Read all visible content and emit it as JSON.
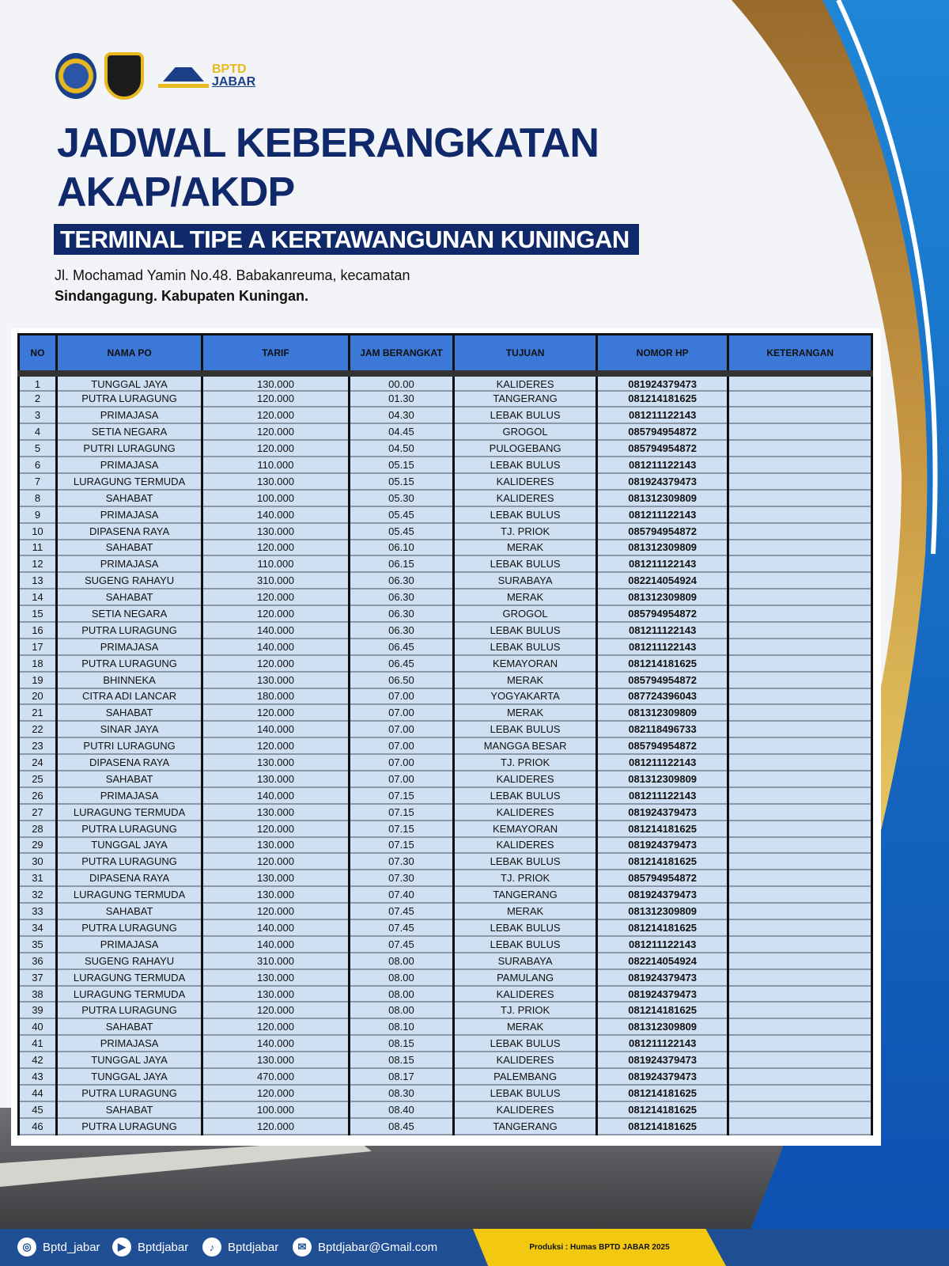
{
  "brand": {
    "logo_text_top": "BPTD",
    "logo_text_bottom": "JABAR"
  },
  "title": {
    "line1": "JADWAL KEBERANGKATAN",
    "line2": "AKAP/AKDP",
    "subtitle": "TERMINAL TIPE A KERTAWANGUNAN KUNINGAN"
  },
  "address": {
    "line1": "Jl. Mochamad Yamin No.48. Babakanreuma, kecamatan",
    "line2": "Sindangagung. Kabupaten Kuningan."
  },
  "table": {
    "headers": [
      "NO",
      "NAMA PO",
      "TARIF",
      "JAM BERANGKAT",
      "TUJUAN",
      "NOMOR HP",
      "KETERANGAN"
    ],
    "rows": [
      [
        "1",
        "TUNGGAL JAYA",
        "130.000",
        "00.00",
        "KALIDERES",
        "081924379473",
        ""
      ],
      [
        "2",
        "PUTRA LURAGUNG",
        "120.000",
        "01.30",
        "TANGERANG",
        "081214181625",
        ""
      ],
      [
        "3",
        "PRIMAJASA",
        "120.000",
        "04.30",
        "LEBAK BULUS",
        "081211122143",
        ""
      ],
      [
        "4",
        "SETIA NEGARA",
        "120.000",
        "04.45",
        "GROGOL",
        "085794954872",
        ""
      ],
      [
        "5",
        "PUTRI LURAGUNG",
        "120.000",
        "04.50",
        "PULOGEBANG",
        "085794954872",
        ""
      ],
      [
        "6",
        "PRIMAJASA",
        "110.000",
        "05.15",
        "LEBAK BULUS",
        "081211122143",
        ""
      ],
      [
        "7",
        "LURAGUNG TERMUDA",
        "130.000",
        "05.15",
        "KALIDERES",
        "081924379473",
        ""
      ],
      [
        "8",
        "SAHABAT",
        "100.000",
        "05.30",
        "KALIDERES",
        "081312309809",
        ""
      ],
      [
        "9",
        "PRIMAJASA",
        "140.000",
        "05.45",
        "LEBAK BULUS",
        "081211122143",
        ""
      ],
      [
        "10",
        "DIPASENA RAYA",
        "130.000",
        "05.45",
        "TJ. PRIOK",
        "085794954872",
        ""
      ],
      [
        "11",
        "SAHABAT",
        "120.000",
        "06.10",
        "MERAK",
        "081312309809",
        ""
      ],
      [
        "12",
        "PRIMAJASA",
        "110.000",
        "06.15",
        "LEBAK BULUS",
        "081211122143",
        ""
      ],
      [
        "13",
        "SUGENG RAHAYU",
        "310.000",
        "06.30",
        "SURABAYA",
        "082214054924",
        ""
      ],
      [
        "14",
        "SAHABAT",
        "120.000",
        "06.30",
        "MERAK",
        "081312309809",
        ""
      ],
      [
        "15",
        "SETIA NEGARA",
        "120.000",
        "06.30",
        "GROGOL",
        "085794954872",
        ""
      ],
      [
        "16",
        "PUTRA LURAGUNG",
        "140.000",
        "06.30",
        "LEBAK BULUS",
        "081211122143",
        ""
      ],
      [
        "17",
        "PRIMAJASA",
        "140.000",
        "06.45",
        "LEBAK BULUS",
        "081211122143",
        ""
      ],
      [
        "18",
        "PUTRA LURAGUNG",
        "120.000",
        "06.45",
        "KEMAYORAN",
        "081214181625",
        ""
      ],
      [
        "19",
        "BHINNEKA",
        "130.000",
        "06.50",
        "MERAK",
        "085794954872",
        ""
      ],
      [
        "20",
        "CITRA ADI LANCAR",
        "180.000",
        "07.00",
        "YOGYAKARTA",
        "087724396043",
        ""
      ],
      [
        "21",
        "SAHABAT",
        "120.000",
        "07.00",
        "MERAK",
        "081312309809",
        ""
      ],
      [
        "22",
        "SINAR JAYA",
        "140.000",
        "07.00",
        "LEBAK BULUS",
        "082118496733",
        ""
      ],
      [
        "23",
        "PUTRI LURAGUNG",
        "120.000",
        "07.00",
        "MANGGA BESAR",
        "085794954872",
        ""
      ],
      [
        "24",
        "DIPASENA RAYA",
        "130.000",
        "07.00",
        "TJ. PRIOK",
        "081211122143",
        ""
      ],
      [
        "25",
        "SAHABAT",
        "130.000",
        "07.00",
        "KALIDERES",
        "081312309809",
        ""
      ],
      [
        "26",
        "PRIMAJASA",
        "140.000",
        "07.15",
        "LEBAK BULUS",
        "081211122143",
        ""
      ],
      [
        "27",
        "LURAGUNG TERMUDA",
        "130.000",
        "07.15",
        "KALIDERES",
        "081924379473",
        ""
      ],
      [
        "28",
        "PUTRA LURAGUNG",
        "120.000",
        "07.15",
        "KEMAYORAN",
        "081214181625",
        ""
      ],
      [
        "29",
        "TUNGGAL JAYA",
        "130.000",
        "07.15",
        "KALIDERES",
        "081924379473",
        ""
      ],
      [
        "30",
        "PUTRA LURAGUNG",
        "120.000",
        "07.30",
        "LEBAK BULUS",
        "081214181625",
        ""
      ],
      [
        "31",
        "DIPASENA RAYA",
        "130.000",
        "07.30",
        "TJ. PRIOK",
        "085794954872",
        ""
      ],
      [
        "32",
        "LURAGUNG TERMUDA",
        "130.000",
        "07.40",
        "TANGERANG",
        "081924379473",
        ""
      ],
      [
        "33",
        "SAHABAT",
        "120.000",
        "07.45",
        "MERAK",
        "081312309809",
        ""
      ],
      [
        "34",
        "PUTRA LURAGUNG",
        "140.000",
        "07.45",
        "LEBAK BULUS",
        "081214181625",
        ""
      ],
      [
        "35",
        "PRIMAJASA",
        "140.000",
        "07.45",
        "LEBAK BULUS",
        "081211122143",
        ""
      ],
      [
        "36",
        "SUGENG RAHAYU",
        "310.000",
        "08.00",
        "SURABAYA",
        "082214054924",
        ""
      ],
      [
        "37",
        "LURAGUNG TERMUDA",
        "130.000",
        "08.00",
        "PAMULANG",
        "081924379473",
        ""
      ],
      [
        "38",
        "LURAGUNG TERMUDA",
        "130.000",
        "08.00",
        "KALIDERES",
        "081924379473",
        ""
      ],
      [
        "39",
        "PUTRA LURAGUNG",
        "120.000",
        "08.00",
        "TJ. PRIOK",
        "081214181625",
        ""
      ],
      [
        "40",
        "SAHABAT",
        "120.000",
        "08.10",
        "MERAK",
        "081312309809",
        ""
      ],
      [
        "41",
        "PRIMAJASA",
        "140.000",
        "08.15",
        "LEBAK BULUS",
        "081211122143",
        ""
      ],
      [
        "42",
        "TUNGGAL JAYA",
        "130.000",
        "08.15",
        "KALIDERES",
        "081924379473",
        ""
      ],
      [
        "43",
        "TUNGGAL JAYA",
        "470.000",
        "08.17",
        "PALEMBANG",
        "081924379473",
        ""
      ],
      [
        "44",
        "PUTRA LURAGUNG",
        "120.000",
        "08.30",
        "LEBAK BULUS",
        "081214181625",
        ""
      ],
      [
        "45",
        "SAHABAT",
        "100.000",
        "08.40",
        "KALIDERES",
        "081214181625",
        ""
      ],
      [
        "46",
        "PUTRA LURAGUNG",
        "120.000",
        "08.45",
        "TANGERANG",
        "081214181625",
        ""
      ]
    ]
  },
  "footer": {
    "socials": [
      {
        "icon": "instagram-icon",
        "label": "Bptd_jabar"
      },
      {
        "icon": "youtube-icon",
        "label": "Bptdjabar"
      },
      {
        "icon": "tiktok-icon",
        "label": "Bptdjabar"
      },
      {
        "icon": "email-icon",
        "label": "Bptdjabar@Gmail.com"
      }
    ],
    "production": "Produksi : Humas BPTD JABAR 2025"
  },
  "colors": {
    "navy": "#10296b",
    "header_blue": "#3b78d8",
    "row_bg": "#cfe0f3",
    "gold": "#e8b91c",
    "footer_blue": "#1f4e94"
  }
}
